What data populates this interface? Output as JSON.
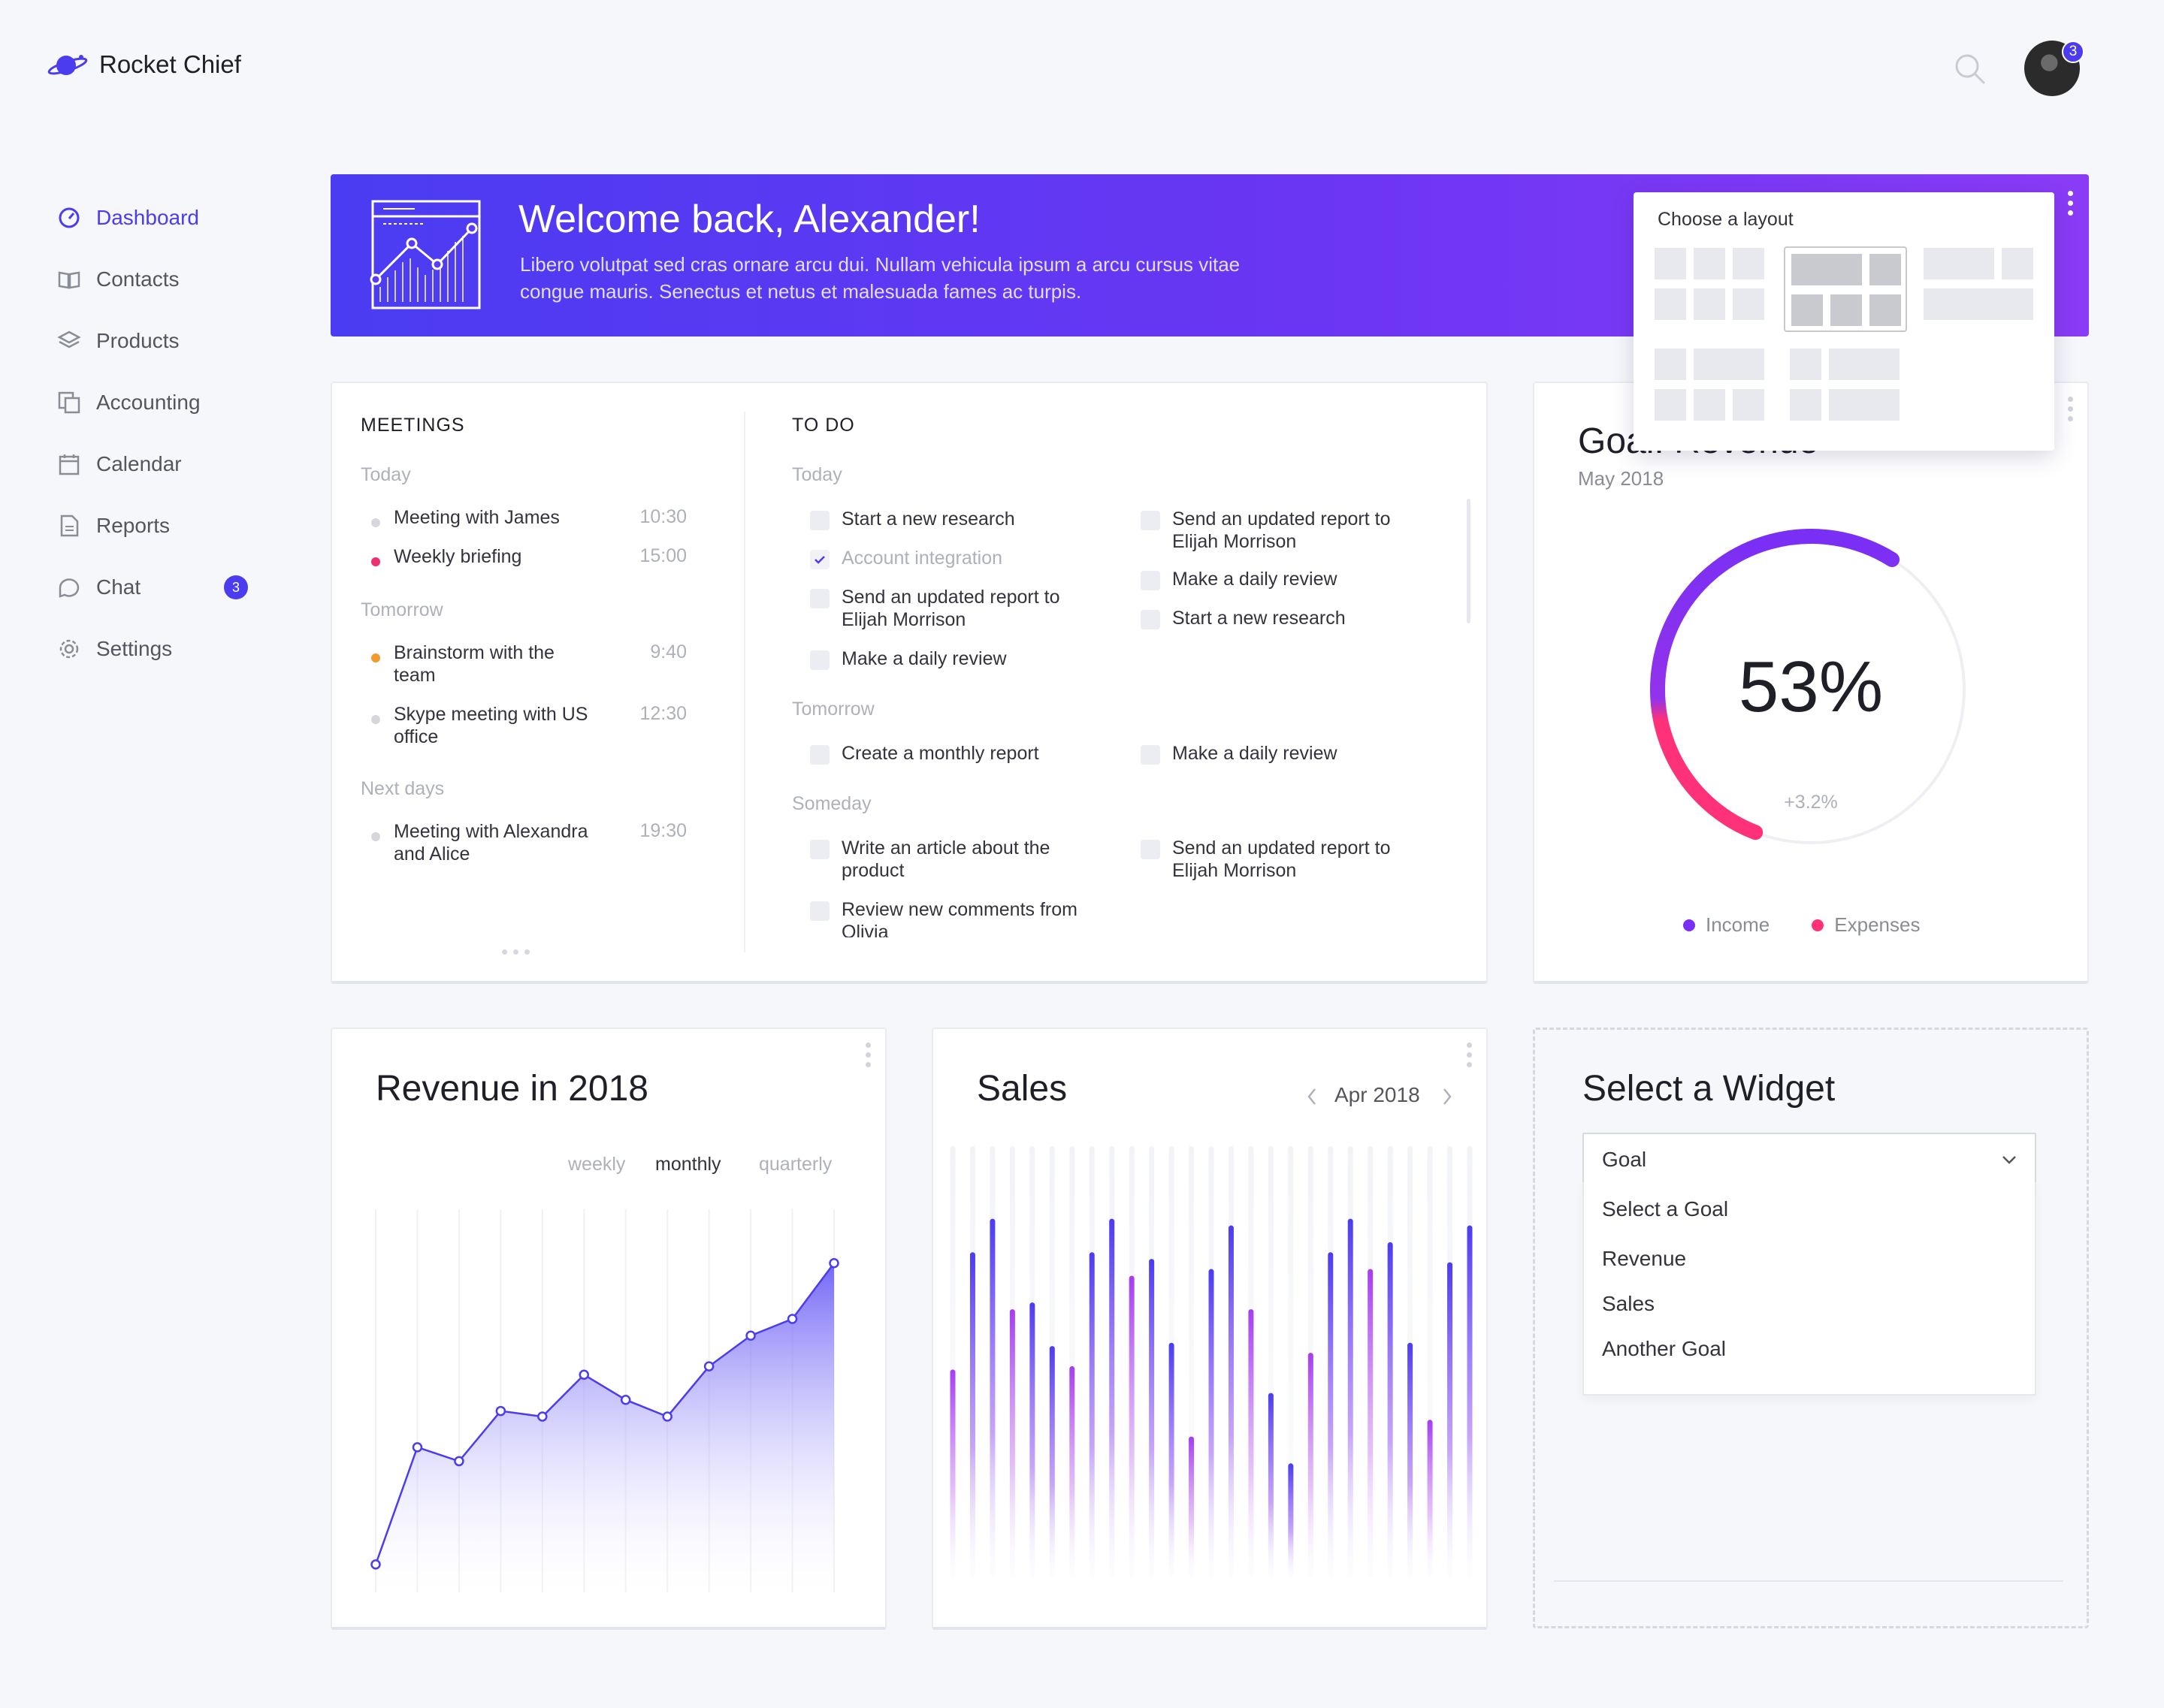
{
  "app": {
    "name": "Rocket Chief",
    "notification_count": "3"
  },
  "nav": {
    "items": [
      {
        "label": "Dashboard",
        "icon": "dashboard-icon",
        "active": true
      },
      {
        "label": "Contacts",
        "icon": "book-icon"
      },
      {
        "label": "Products",
        "icon": "layers-icon"
      },
      {
        "label": "Accounting",
        "icon": "copy-icon"
      },
      {
        "label": "Calendar",
        "icon": "calendar-icon"
      },
      {
        "label": "Reports",
        "icon": "document-icon"
      },
      {
        "label": "Chat",
        "icon": "chat-icon",
        "badge": "3"
      },
      {
        "label": "Settings",
        "icon": "gear-icon"
      }
    ]
  },
  "banner": {
    "title": "Welcome back, Alexander!",
    "text": "Libero volutpat sed cras ornare arcu dui. Nullam vehicula ipsum a arcu cursus vitae congue mauris. Senectus et netus et malesuada fames ac turpis."
  },
  "layout_popover": {
    "title": "Choose a layout"
  },
  "meetings": {
    "title": "MEETINGS",
    "groups": [
      {
        "label": "Today",
        "items": [
          {
            "text": "Meeting with James",
            "time": "10:30",
            "color": "#d6d7dc"
          },
          {
            "text": "Weekly briefing",
            "time": "15:00",
            "color": "#f0306e"
          }
        ]
      },
      {
        "label": "Tomorrow",
        "items": [
          {
            "text": "Brainstorm with the team",
            "time": "9:40",
            "color": "#f29a2e"
          },
          {
            "text": "Skype meeting with US office",
            "time": "12:30",
            "color": "#d6d7dc"
          }
        ]
      },
      {
        "label": "Next days",
        "items": [
          {
            "text": "Meeting with Alexandra and Alice",
            "time": "19:30",
            "color": "#d6d7dc"
          }
        ]
      }
    ]
  },
  "todo": {
    "title": "TO DO",
    "today_label": "Today",
    "today_left": [
      "Start a new research",
      "Account integration",
      "Send an updated report to Elijah Morrison",
      "Make a daily review"
    ],
    "today_right": [
      "Send an updated report to Elijah Morrison",
      "Make a daily review",
      "Start a new research"
    ],
    "tomorrow_label": "Tomorrow",
    "tomorrow_left": [
      "Create a monthly report"
    ],
    "tomorrow_right": [
      "Make a daily review"
    ],
    "someday_label": "Someday",
    "someday_left": [
      "Write an article about the product",
      "Review new comments from Olivia"
    ],
    "someday_right": [
      "Send an updated report to Elijah Morrison"
    ]
  },
  "goal": {
    "title": "Goal: Revenue",
    "date": "May 2018",
    "percent": "53%",
    "value": 0.53,
    "change": "+3.2%",
    "legend": [
      {
        "label": "Income",
        "color": "#7a2ff5"
      },
      {
        "label": "Expenses",
        "color": "#ff3179"
      }
    ]
  },
  "revenue": {
    "title": "Revenue in 2018",
    "tabs": [
      "weekly",
      "monthly",
      "quarterly"
    ],
    "active_tab": "monthly"
  },
  "sales": {
    "title": "Sales",
    "period": "Apr 2018"
  },
  "widget_select": {
    "title": "Select a Widget",
    "selected": "Goal",
    "placeholder": "Select a Goal",
    "options": [
      "Revenue",
      "Sales",
      "Another Goal"
    ]
  },
  "chart_data": [
    {
      "type": "area",
      "title": "Revenue in 2018",
      "values": [
        10,
        52,
        47,
        65,
        63,
        78,
        69,
        63,
        81,
        92,
        98,
        118
      ]
    },
    {
      "type": "bar",
      "title": "Sales",
      "values": [
        62,
        97,
        107,
        80,
        82,
        69,
        63,
        97,
        107,
        90,
        95,
        70,
        42,
        92,
        105,
        80,
        55,
        34,
        67,
        97,
        107,
        92,
        100,
        70,
        47,
        94,
        105
      ]
    }
  ]
}
